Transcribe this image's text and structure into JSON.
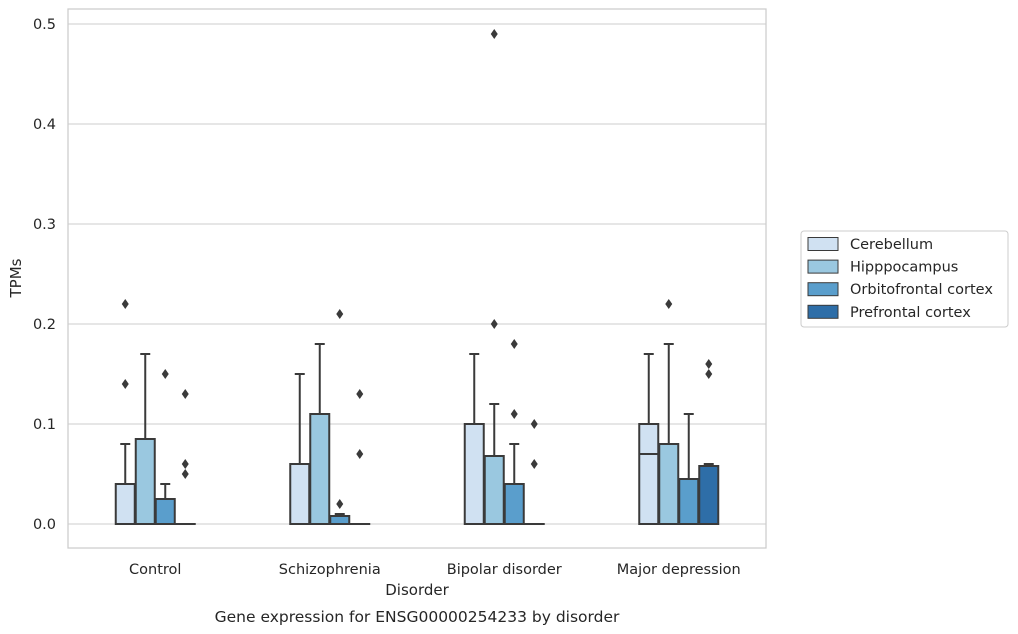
{
  "chart_data": {
    "type": "box",
    "caption": "Gene expression for ENSG00000254233 by disorder",
    "xlabel": "Disorder",
    "ylabel": "TPMs",
    "ylim": [
      -0.024,
      0.515
    ],
    "yticks": [
      0.0,
      0.1,
      0.2,
      0.3,
      0.4,
      0.5
    ],
    "ytick_labels": [
      "0.0",
      "0.1",
      "0.2",
      "0.3",
      "0.4",
      "0.5"
    ],
    "grid": true,
    "legend_position": "right",
    "categories": [
      "Control",
      "Schizophrenia",
      "Bipolar disorder",
      "Major depression"
    ],
    "series": [
      {
        "name": "Cerebellum",
        "color": "#d0e1f2",
        "boxes": [
          {
            "q1": 0.0,
            "median": 0.0,
            "q3": 0.04,
            "whisker_low": 0.0,
            "whisker_high": 0.08,
            "outliers": [
              0.14,
              0.22
            ]
          },
          {
            "q1": 0.0,
            "median": 0.0,
            "q3": 0.06,
            "whisker_low": 0.0,
            "whisker_high": 0.15,
            "outliers": []
          },
          {
            "q1": 0.0,
            "median": 0.0,
            "q3": 0.1,
            "whisker_low": 0.0,
            "whisker_high": 0.17,
            "outliers": []
          },
          {
            "q1": 0.0,
            "median": 0.07,
            "q3": 0.1,
            "whisker_low": 0.0,
            "whisker_high": 0.17,
            "outliers": []
          }
        ]
      },
      {
        "name": "Hipppocampus",
        "color": "#9ac8e0",
        "boxes": [
          {
            "q1": 0.0,
            "median": 0.0,
            "q3": 0.085,
            "whisker_low": 0.0,
            "whisker_high": 0.17,
            "outliers": []
          },
          {
            "q1": 0.0,
            "median": 0.0,
            "q3": 0.11,
            "whisker_low": 0.0,
            "whisker_high": 0.18,
            "outliers": []
          },
          {
            "q1": 0.0,
            "median": 0.0,
            "q3": 0.068,
            "whisker_low": 0.0,
            "whisker_high": 0.12,
            "outliers": [
              0.2,
              0.49
            ]
          },
          {
            "q1": 0.0,
            "median": 0.0,
            "q3": 0.08,
            "whisker_low": 0.0,
            "whisker_high": 0.18,
            "outliers": [
              0.22
            ]
          }
        ]
      },
      {
        "name": "Orbitofrontal cortex",
        "color": "#5a9ecc",
        "boxes": [
          {
            "q1": 0.0,
            "median": 0.0,
            "q3": 0.025,
            "whisker_low": 0.0,
            "whisker_high": 0.04,
            "outliers": [
              0.15
            ]
          },
          {
            "q1": 0.0,
            "median": 0.0,
            "q3": 0.008,
            "whisker_low": 0.0,
            "whisker_high": 0.01,
            "outliers": [
              0.02,
              0.21
            ]
          },
          {
            "q1": 0.0,
            "median": 0.0,
            "q3": 0.04,
            "whisker_low": 0.0,
            "whisker_high": 0.08,
            "outliers": [
              0.11,
              0.18
            ]
          },
          {
            "q1": 0.0,
            "median": 0.0,
            "q3": 0.045,
            "whisker_low": 0.0,
            "whisker_high": 0.11,
            "outliers": []
          }
        ]
      },
      {
        "name": "Prefrontal cortex",
        "color": "#2e6ea8",
        "boxes": [
          {
            "q1": 0.0,
            "median": 0.0,
            "q3": 0.0,
            "whisker_low": 0.0,
            "whisker_high": 0.0,
            "outliers": [
              0.05,
              0.06,
              0.13
            ]
          },
          {
            "q1": 0.0,
            "median": 0.0,
            "q3": 0.0,
            "whisker_low": 0.0,
            "whisker_high": 0.0,
            "outliers": [
              0.07,
              0.13
            ]
          },
          {
            "q1": 0.0,
            "median": 0.0,
            "q3": 0.0,
            "whisker_low": 0.0,
            "whisker_high": 0.0,
            "outliers": [
              0.06,
              0.1
            ]
          },
          {
            "q1": 0.0,
            "median": 0.0,
            "q3": 0.058,
            "whisker_low": 0.0,
            "whisker_high": 0.06,
            "outliers": [
              0.15,
              0.16
            ]
          }
        ]
      }
    ],
    "colors": {
      "grid": "#cccccc",
      "frame": "#cccccc",
      "box_edge": "#3a3a3a",
      "legend_border": "#cccccc"
    }
  }
}
